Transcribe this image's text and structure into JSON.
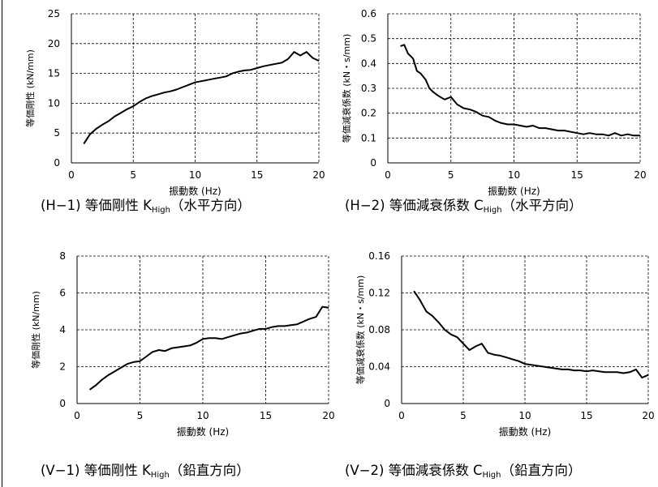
{
  "chart_data": [
    {
      "type": "line",
      "caption": "(H−1) 等価剛性 K",
      "caption_sub": "High",
      "caption_tail": "（水平方向）",
      "xlabel": "振動数 (Hz)",
      "ylabel": "等価剛性 (kN/mm)",
      "xlim": [
        0,
        20
      ],
      "ylim": [
        0,
        25
      ],
      "xticks": [
        "0",
        "5",
        "10",
        "15",
        "20"
      ],
      "yticks": [
        "0",
        "5",
        "10",
        "15",
        "20",
        "25"
      ],
      "grid": true,
      "series": [
        {
          "x": [
            1,
            1.5,
            2,
            2.5,
            3,
            3.5,
            4,
            4.5,
            5,
            5.5,
            6,
            6.5,
            7,
            7.5,
            8,
            8.5,
            9,
            9.5,
            10,
            10.5,
            11,
            11.5,
            12,
            12.5,
            13,
            13.5,
            14,
            14.5,
            15,
            15.5,
            16,
            16.5,
            17,
            17.5,
            18,
            18.5,
            19,
            19.5,
            20
          ],
          "y": [
            3.2,
            4.8,
            5.7,
            6.4,
            7.0,
            7.8,
            8.4,
            9.0,
            9.5,
            10.2,
            10.8,
            11.2,
            11.5,
            11.8,
            12.0,
            12.3,
            12.7,
            13.1,
            13.5,
            13.7,
            13.9,
            14.1,
            14.3,
            14.5,
            15.0,
            15.3,
            15.5,
            15.6,
            15.9,
            16.2,
            16.4,
            16.6,
            16.8,
            17.4,
            18.6,
            18.0,
            18.6,
            17.6,
            17.1
          ]
        }
      ]
    },
    {
      "type": "line",
      "caption": "(H−2) 等価減衰係数 C",
      "caption_sub": "High",
      "caption_tail": "（水平方向）",
      "xlabel": "振動数 (Hz)",
      "ylabel": "等価減衰係数 (kN・s/mm)",
      "xlim": [
        0,
        20
      ],
      "ylim": [
        0,
        0.6
      ],
      "xticks": [
        "0",
        "5",
        "10",
        "15",
        "20"
      ],
      "yticks": [
        "0",
        "0.1",
        "0.2",
        "0.3",
        "0.4",
        "0.5",
        "0.6"
      ],
      "grid": true,
      "series": [
        {
          "x": [
            1,
            1.3,
            1.6,
            2,
            2.3,
            2.6,
            3,
            3.3,
            3.6,
            4,
            4.5,
            5,
            5.5,
            6,
            6.5,
            7,
            7.5,
            8,
            8.5,
            9,
            9.5,
            10,
            10.5,
            11,
            11.5,
            12,
            12.5,
            13,
            13.5,
            14,
            14.5,
            15,
            15.5,
            16,
            16.5,
            17,
            17.5,
            18,
            18.5,
            19,
            19.5,
            20
          ],
          "y": [
            0.47,
            0.475,
            0.44,
            0.42,
            0.37,
            0.36,
            0.335,
            0.3,
            0.285,
            0.27,
            0.255,
            0.265,
            0.235,
            0.22,
            0.215,
            0.205,
            0.19,
            0.185,
            0.17,
            0.16,
            0.155,
            0.155,
            0.15,
            0.145,
            0.15,
            0.14,
            0.14,
            0.135,
            0.13,
            0.13,
            0.125,
            0.12,
            0.115,
            0.12,
            0.115,
            0.115,
            0.11,
            0.12,
            0.11,
            0.115,
            0.11,
            0.11
          ]
        }
      ]
    },
    {
      "type": "line",
      "caption": "(V−1) 等価剛性 K",
      "caption_sub": "High",
      "caption_tail": "（鉛直方向）",
      "xlabel": "振動数 (Hz)",
      "ylabel": "等価剛性 (kN/mm)",
      "xlim": [
        0,
        20
      ],
      "ylim": [
        0,
        8
      ],
      "xticks": [
        "0",
        "5",
        "10",
        "15",
        "20"
      ],
      "yticks": [
        "0",
        "2",
        "4",
        "6",
        "8"
      ],
      "grid": true,
      "series": [
        {
          "x": [
            1,
            1.5,
            2,
            2.5,
            3,
            3.5,
            4,
            4.5,
            5,
            5.5,
            6,
            6.5,
            7,
            7.5,
            8,
            8.5,
            9,
            9.5,
            10,
            10.5,
            11,
            11.5,
            12,
            12.5,
            13,
            13.5,
            14,
            14.5,
            15,
            15.5,
            16,
            16.5,
            17,
            17.5,
            18,
            18.5,
            19,
            19.5,
            20
          ],
          "y": [
            0.75,
            1.0,
            1.3,
            1.55,
            1.75,
            1.95,
            2.15,
            2.25,
            2.3,
            2.55,
            2.8,
            2.9,
            2.85,
            3.0,
            3.05,
            3.1,
            3.15,
            3.3,
            3.5,
            3.55,
            3.55,
            3.5,
            3.6,
            3.7,
            3.8,
            3.85,
            3.95,
            4.05,
            4.05,
            4.15,
            4.2,
            4.2,
            4.25,
            4.3,
            4.45,
            4.6,
            4.7,
            5.25,
            5.2
          ]
        }
      ]
    },
    {
      "type": "line",
      "caption": "(V−2) 等価減衰係数 C",
      "caption_sub": "High",
      "caption_tail": "（鉛直方向）",
      "xlabel": "振動数 (Hz)",
      "ylabel": "等価減衰係数 (kN・s/mm)",
      "xlim": [
        0,
        20
      ],
      "ylim": [
        0,
        0.16
      ],
      "xticks": [
        "0",
        "5",
        "10",
        "15",
        "20"
      ],
      "yticks": [
        "0",
        "0.04",
        "0.08",
        "0.12",
        "0.16"
      ],
      "grid": true,
      "series": [
        {
          "x": [
            1,
            1.5,
            2,
            2.5,
            3,
            3.5,
            4,
            4.5,
            5,
            5.5,
            6,
            6.5,
            7,
            7.5,
            8,
            8.5,
            9,
            9.5,
            10,
            10.5,
            11,
            11.5,
            12,
            12.5,
            13,
            13.5,
            14,
            14.5,
            15,
            15.5,
            16,
            16.5,
            17,
            17.5,
            18,
            18.5,
            19,
            19.5,
            20
          ],
          "y": [
            0.122,
            0.112,
            0.1,
            0.095,
            0.088,
            0.08,
            0.075,
            0.072,
            0.065,
            0.058,
            0.062,
            0.065,
            0.055,
            0.053,
            0.052,
            0.05,
            0.048,
            0.046,
            0.043,
            0.042,
            0.041,
            0.04,
            0.039,
            0.038,
            0.037,
            0.037,
            0.036,
            0.036,
            0.035,
            0.036,
            0.035,
            0.034,
            0.034,
            0.034,
            0.033,
            0.034,
            0.037,
            0.028,
            0.031
          ]
        }
      ]
    }
  ]
}
